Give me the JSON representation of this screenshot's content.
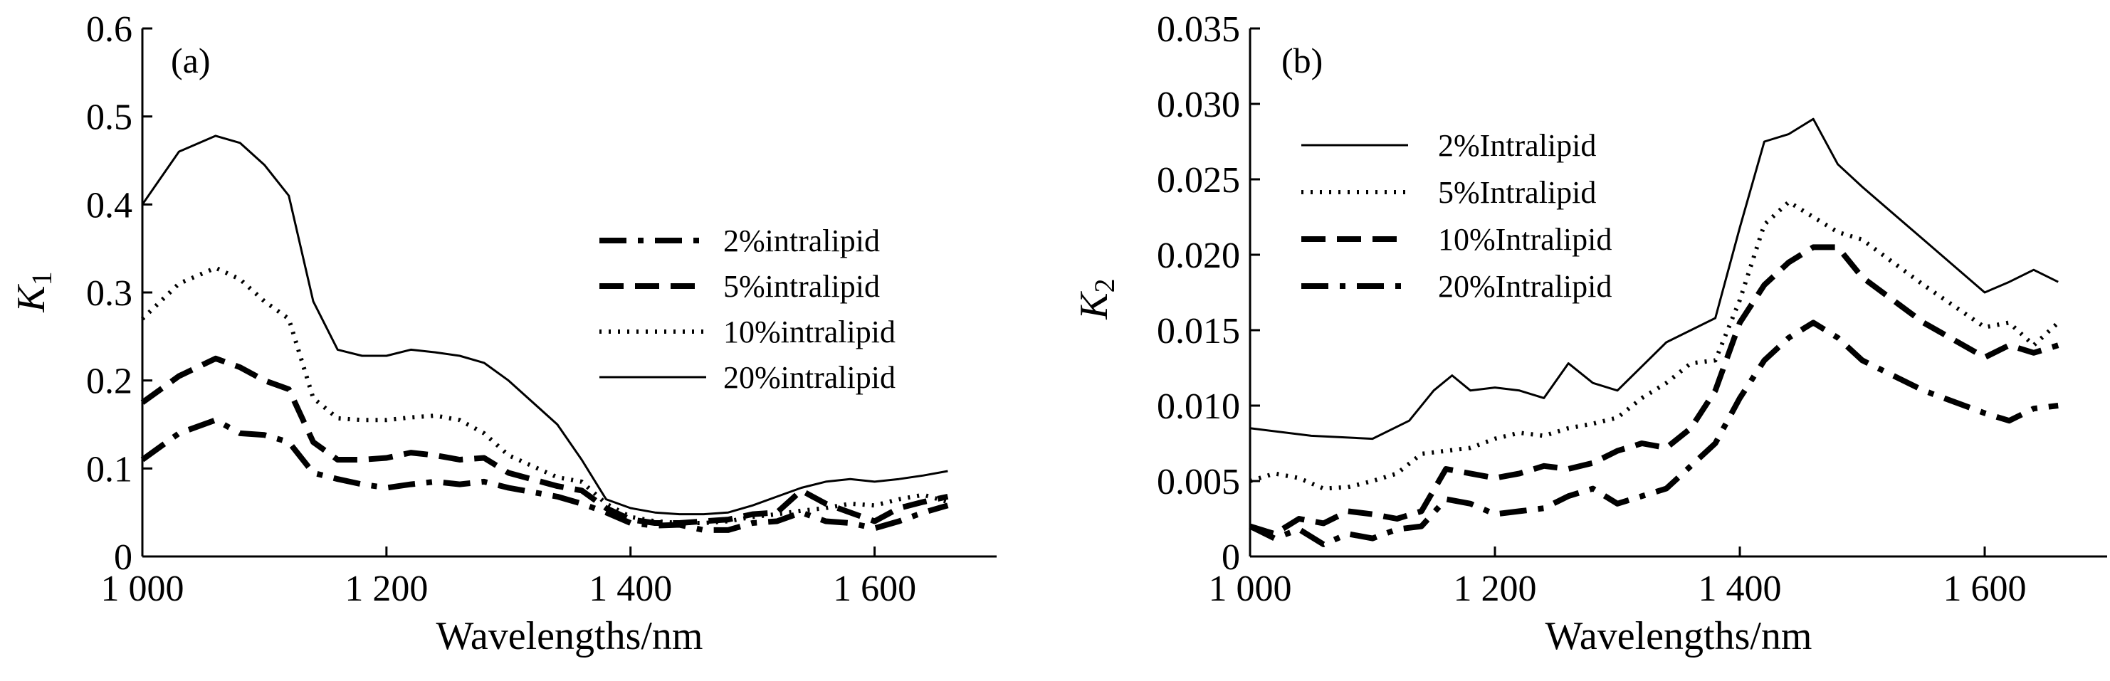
{
  "chart_data": [
    {
      "type": "line",
      "panel_label": "(a)",
      "xlabel": "Wavelengths/nm",
      "ylabel": "K",
      "ylabel_sub": "1",
      "xlim": [
        1000,
        1700
      ],
      "ylim": [
        0,
        0.6
      ],
      "xticks": [
        1000,
        1200,
        1400,
        1600
      ],
      "xtick_labels": [
        "1 000",
        "1 200",
        "1 400",
        "1 600"
      ],
      "yticks": [
        0,
        0.1,
        0.2,
        0.3,
        0.4,
        0.5,
        0.6
      ],
      "ytick_labels": [
        "0",
        "0.1",
        "0.2",
        "0.3",
        "0.4",
        "0.5",
        "0.6"
      ],
      "grid": false,
      "legend_position": "center-right",
      "series": [
        {
          "name": "2%intralipid",
          "style": "dashdot",
          "x": [
            1000,
            1030,
            1060,
            1080,
            1100,
            1120,
            1140,
            1160,
            1180,
            1200,
            1220,
            1240,
            1260,
            1280,
            1300,
            1340,
            1360,
            1380,
            1400,
            1420,
            1440,
            1460,
            1480,
            1500,
            1520,
            1540,
            1560,
            1580,
            1600,
            1620,
            1640,
            1660
          ],
          "y": [
            0.11,
            0.14,
            0.155,
            0.14,
            0.138,
            0.13,
            0.095,
            0.088,
            0.082,
            0.078,
            0.082,
            0.085,
            0.082,
            0.085,
            0.078,
            0.068,
            0.06,
            0.05,
            0.038,
            0.035,
            0.036,
            0.03,
            0.03,
            0.038,
            0.04,
            0.05,
            0.04,
            0.038,
            0.032,
            0.04,
            0.05,
            0.058
          ]
        },
        {
          "name": "5%intralipid",
          "style": "dashed",
          "x": [
            1000,
            1030,
            1060,
            1080,
            1100,
            1120,
            1140,
            1160,
            1180,
            1200,
            1220,
            1240,
            1260,
            1280,
            1300,
            1340,
            1360,
            1380,
            1400,
            1420,
            1440,
            1460,
            1480,
            1500,
            1520,
            1540,
            1560,
            1580,
            1600,
            1620,
            1640,
            1660
          ],
          "y": [
            0.175,
            0.205,
            0.225,
            0.215,
            0.2,
            0.19,
            0.13,
            0.11,
            0.11,
            0.112,
            0.118,
            0.115,
            0.11,
            0.112,
            0.095,
            0.08,
            0.075,
            0.055,
            0.042,
            0.038,
            0.038,
            0.04,
            0.042,
            0.048,
            0.05,
            0.075,
            0.06,
            0.05,
            0.04,
            0.055,
            0.062,
            0.068
          ]
        },
        {
          "name": "10%intralipid",
          "style": "dotted",
          "x": [
            1000,
            1030,
            1060,
            1080,
            1100,
            1120,
            1140,
            1160,
            1180,
            1200,
            1220,
            1240,
            1260,
            1280,
            1300,
            1340,
            1360,
            1380,
            1400,
            1420,
            1440,
            1460,
            1480,
            1500,
            1520,
            1540,
            1560,
            1580,
            1600,
            1620,
            1640,
            1660
          ],
          "y": [
            0.27,
            0.31,
            0.328,
            0.315,
            0.29,
            0.27,
            0.18,
            0.157,
            0.155,
            0.155,
            0.158,
            0.16,
            0.155,
            0.14,
            0.115,
            0.09,
            0.085,
            0.06,
            0.045,
            0.04,
            0.038,
            0.038,
            0.04,
            0.045,
            0.048,
            0.052,
            0.055,
            0.06,
            0.058,
            0.065,
            0.07,
            0.062
          ]
        },
        {
          "name": "20%intralipid",
          "style": "solid",
          "x": [
            1000,
            1030,
            1060,
            1080,
            1100,
            1120,
            1140,
            1160,
            1180,
            1200,
            1220,
            1240,
            1260,
            1280,
            1300,
            1340,
            1360,
            1380,
            1400,
            1420,
            1440,
            1460,
            1480,
            1500,
            1520,
            1540,
            1560,
            1580,
            1600,
            1620,
            1640,
            1660
          ],
          "y": [
            0.4,
            0.46,
            0.478,
            0.47,
            0.445,
            0.41,
            0.29,
            0.235,
            0.228,
            0.228,
            0.235,
            0.232,
            0.228,
            0.22,
            0.2,
            0.15,
            0.11,
            0.065,
            0.055,
            0.05,
            0.048,
            0.048,
            0.05,
            0.058,
            0.068,
            0.078,
            0.085,
            0.088,
            0.085,
            0.088,
            0.092,
            0.097
          ]
        }
      ]
    },
    {
      "type": "line",
      "panel_label": "(b)",
      "xlabel": "Wavelengths/nm",
      "ylabel": "K",
      "ylabel_sub": "2",
      "xlim": [
        1000,
        1700
      ],
      "ylim": [
        0,
        0.035
      ],
      "xticks": [
        1000,
        1200,
        1400,
        1600
      ],
      "xtick_labels": [
        "1 000",
        "1 200",
        "1 400",
        "1 600"
      ],
      "yticks": [
        0,
        0.005,
        0.01,
        0.015,
        0.02,
        0.025,
        0.03,
        0.035
      ],
      "ytick_labels": [
        "0",
        "0.005",
        "0.010",
        "0.015",
        "0.020",
        "0.025",
        "0.030",
        "0.035"
      ],
      "grid": false,
      "legend_position": "top-left",
      "series": [
        {
          "name": "2%Intralipid",
          "style": "solid",
          "x": [
            1000,
            1050,
            1100,
            1130,
            1150,
            1165,
            1180,
            1200,
            1220,
            1240,
            1260,
            1280,
            1300,
            1340,
            1380,
            1400,
            1420,
            1440,
            1460,
            1480,
            1500,
            1550,
            1600,
            1620,
            1640,
            1660
          ],
          "y": [
            0.0085,
            0.008,
            0.0078,
            0.009,
            0.011,
            0.012,
            0.011,
            0.0112,
            0.011,
            0.0105,
            0.0128,
            0.0115,
            0.011,
            0.0142,
            0.0158,
            0.0218,
            0.0275,
            0.028,
            0.029,
            0.026,
            0.0245,
            0.021,
            0.0175,
            0.0182,
            0.019,
            0.0182
          ]
        },
        {
          "name": "5%Intralipid",
          "style": "dotted",
          "x": [
            1000,
            1020,
            1040,
            1060,
            1080,
            1100,
            1120,
            1140,
            1160,
            1180,
            1200,
            1220,
            1240,
            1260,
            1280,
            1300,
            1320,
            1340,
            1360,
            1380,
            1400,
            1420,
            1440,
            1460,
            1480,
            1500,
            1550,
            1600,
            1620,
            1640,
            1660
          ],
          "y": [
            0.005,
            0.0055,
            0.0052,
            0.0045,
            0.0046,
            0.005,
            0.0055,
            0.0068,
            0.007,
            0.0072,
            0.0078,
            0.0082,
            0.008,
            0.0085,
            0.0088,
            0.0092,
            0.0105,
            0.0115,
            0.0128,
            0.013,
            0.017,
            0.022,
            0.0235,
            0.0225,
            0.0215,
            0.021,
            0.018,
            0.0152,
            0.0155,
            0.014,
            0.0155
          ]
        },
        {
          "name": "10%Intralipid",
          "style": "dashed",
          "x": [
            1000,
            1020,
            1040,
            1060,
            1080,
            1100,
            1120,
            1140,
            1160,
            1180,
            1200,
            1220,
            1240,
            1260,
            1280,
            1300,
            1320,
            1340,
            1360,
            1380,
            1400,
            1420,
            1440,
            1460,
            1480,
            1500,
            1550,
            1600,
            1620,
            1640,
            1660
          ],
          "y": [
            0.002,
            0.0015,
            0.0025,
            0.0022,
            0.003,
            0.0028,
            0.0025,
            0.003,
            0.0058,
            0.0055,
            0.0052,
            0.0055,
            0.006,
            0.0058,
            0.0062,
            0.007,
            0.0075,
            0.0072,
            0.0085,
            0.011,
            0.0155,
            0.018,
            0.0195,
            0.0205,
            0.0205,
            0.0185,
            0.0155,
            0.0132,
            0.014,
            0.0135,
            0.014
          ]
        },
        {
          "name": "20%Intralipid",
          "style": "dashdot",
          "x": [
            1000,
            1020,
            1040,
            1060,
            1080,
            1100,
            1120,
            1140,
            1160,
            1180,
            1200,
            1220,
            1240,
            1260,
            1280,
            1300,
            1320,
            1340,
            1360,
            1380,
            1400,
            1420,
            1440,
            1460,
            1480,
            1500,
            1550,
            1600,
            1620,
            1640,
            1660
          ],
          "y": [
            0.002,
            0.0012,
            0.0018,
            0.0008,
            0.0015,
            0.0012,
            0.0018,
            0.002,
            0.0038,
            0.0035,
            0.0028,
            0.003,
            0.0032,
            0.004,
            0.0045,
            0.0035,
            0.004,
            0.0045,
            0.006,
            0.0075,
            0.0105,
            0.013,
            0.0145,
            0.0155,
            0.0145,
            0.013,
            0.011,
            0.0095,
            0.009,
            0.0098,
            0.01
          ]
        }
      ]
    }
  ]
}
